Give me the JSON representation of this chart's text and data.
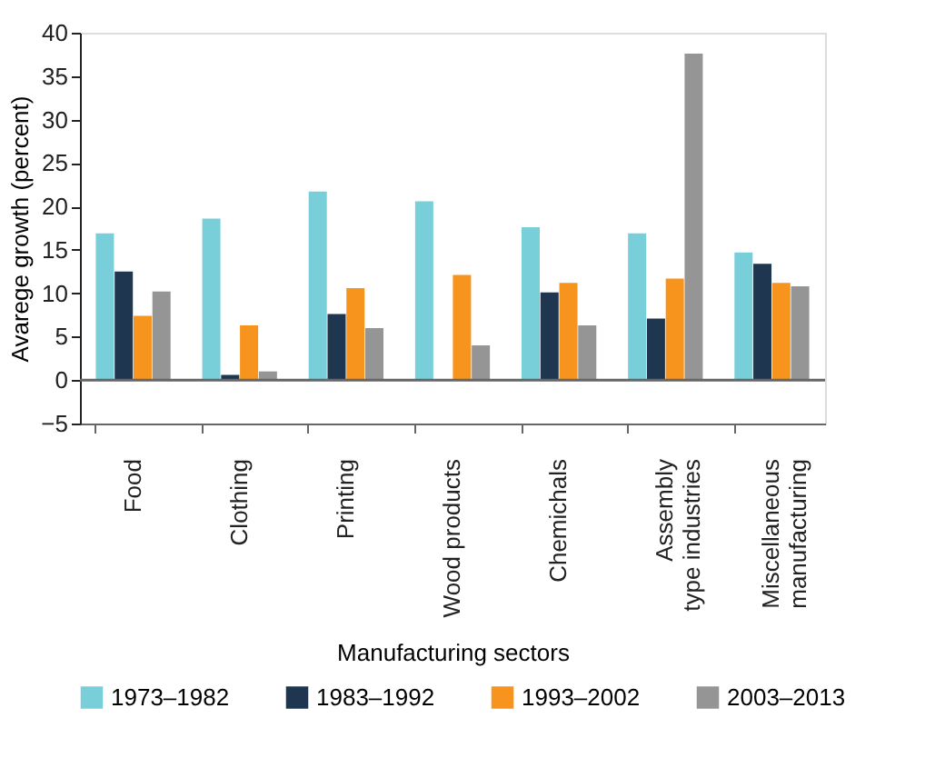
{
  "chart_data": {
    "type": "bar",
    "xlabel": "Manufacturing sectors",
    "ylabel": "Avarege growth (percent)",
    "categories": [
      "Food",
      "Clothing",
      "Printing",
      "Wood products",
      "Chemichals",
      "Assembly\ntype industries",
      "Miscellaneous\nmanufacturing"
    ],
    "series": [
      {
        "name": "1973–1982",
        "color": "#79cfd9",
        "values": [
          16.9,
          18.6,
          21.7,
          20.6,
          17.6,
          16.9,
          14.7
        ]
      },
      {
        "name": "1983–1992",
        "color": "#1f3651",
        "values": [
          12.5,
          0.6,
          7.6,
          0,
          10.1,
          7.1,
          13.4
        ]
      },
      {
        "name": "1993–2002",
        "color": "#f7941d",
        "values": [
          7.4,
          6.3,
          10.6,
          12.1,
          11.2,
          11.7,
          11.2
        ]
      },
      {
        "name": "2003–2013",
        "color": "#959595",
        "values": [
          10.2,
          1.0,
          6.0,
          4.0,
          6.3,
          37.6,
          10.8
        ]
      }
    ],
    "ylim": [
      -5,
      40
    ],
    "yticks": [
      -5,
      0,
      5,
      10,
      15,
      20,
      25,
      30,
      35,
      40
    ],
    "ref_lines": [
      {
        "axis": "y",
        "value": 0,
        "color": "#666666"
      }
    ],
    "grid": false,
    "legend": "bottom"
  }
}
